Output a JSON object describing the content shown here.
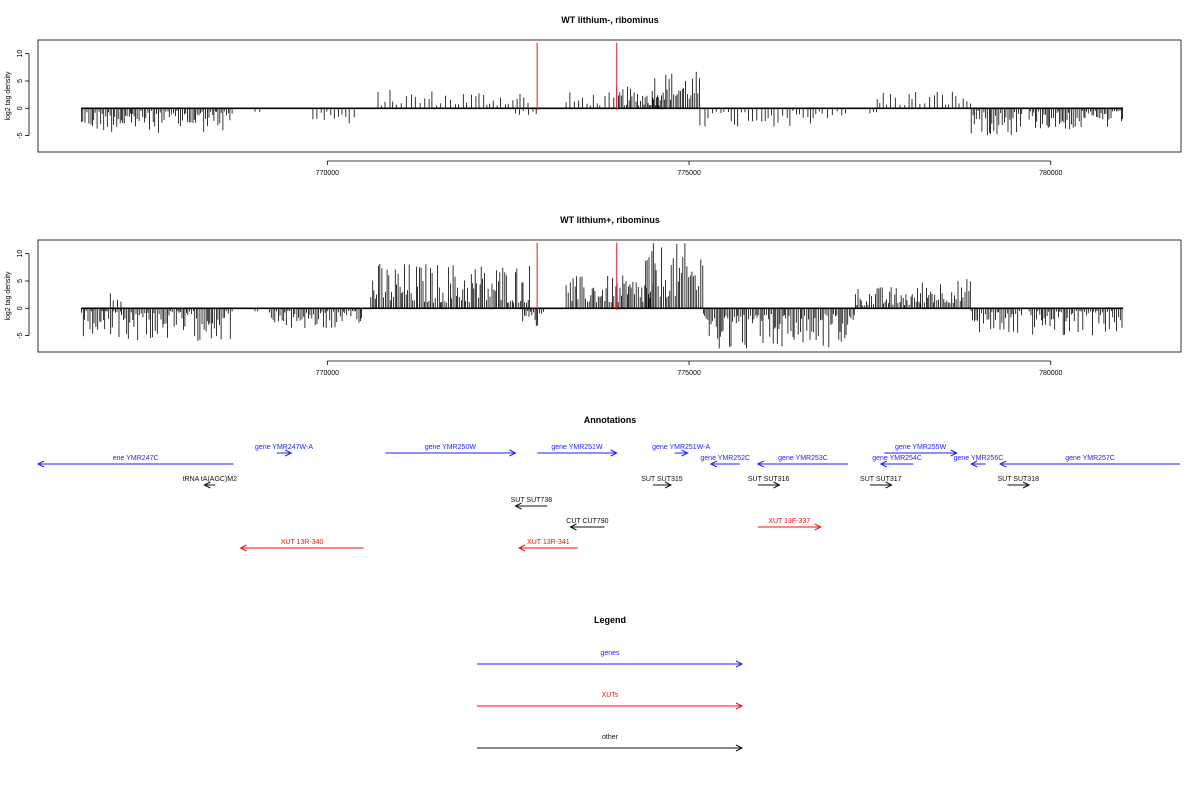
{
  "chart_data": [
    {
      "type": "bar",
      "title": "WT lithium-, ribominus",
      "ylabel": "log2 tag density",
      "xlim": [
        766000,
        781800
      ],
      "ylim": [
        -8,
        12.5
      ],
      "xticks": [
        770000,
        775000,
        780000
      ],
      "yticks": [
        -5,
        0,
        5,
        10
      ],
      "markers": [
        772900,
        774000
      ],
      "marker_color": "#e41a1c",
      "segments": [
        {
          "from": 766600,
          "to": 768700,
          "min": -4.5,
          "max": -0.5
        },
        {
          "from": 769000,
          "to": 769100,
          "min": -1.5,
          "max": -0.5
        },
        {
          "from": 769800,
          "to": 770400,
          "min": -3,
          "max": -0.5
        },
        {
          "from": 770700,
          "to": 772800,
          "min": 0.5,
          "max": 3.5
        },
        {
          "from": 772600,
          "to": 772900,
          "min": -1.5,
          "max": -0.5
        },
        {
          "from": 773300,
          "to": 774000,
          "min": 0.5,
          "max": 3
        },
        {
          "from": 774000,
          "to": 774600,
          "min": 0.5,
          "max": 4
        },
        {
          "from": 774500,
          "to": 775150,
          "min": 1.5,
          "max": 7
        },
        {
          "from": 775150,
          "to": 777200,
          "min": -3.5,
          "max": -0.5
        },
        {
          "from": 777500,
          "to": 777600,
          "min": -1,
          "max": -0.5
        },
        {
          "from": 777600,
          "to": 778900,
          "min": 0.5,
          "max": 3.5
        },
        {
          "from": 778900,
          "to": 779600,
          "min": -5,
          "max": -0.5
        },
        {
          "from": 779700,
          "to": 781000,
          "min": -4,
          "max": -0.5
        }
      ]
    },
    {
      "type": "bar",
      "title": "WT lithium+, ribominus",
      "ylabel": "log2 tag density",
      "xlim": [
        766000,
        781800
      ],
      "ylim": [
        -8,
        12.5
      ],
      "xticks": [
        770000,
        775000,
        780000
      ],
      "yticks": [
        -5,
        0,
        5,
        10
      ],
      "markers": [
        772900,
        774000
      ],
      "marker_color": "#e41a1c",
      "segments": [
        {
          "from": 766600,
          "to": 768700,
          "min": -6,
          "max": -0.5
        },
        {
          "from": 767000,
          "to": 767200,
          "min": 0.5,
          "max": 3
        },
        {
          "from": 769000,
          "to": 769100,
          "min": -1.5,
          "max": -0.5
        },
        {
          "from": 769200,
          "to": 770500,
          "min": -4,
          "max": -0.5
        },
        {
          "from": 770600,
          "to": 772800,
          "min": 1,
          "max": 8.5
        },
        {
          "from": 772700,
          "to": 773000,
          "min": -4,
          "max": -0.5
        },
        {
          "from": 773300,
          "to": 774500,
          "min": 1,
          "max": 6
        },
        {
          "from": 774400,
          "to": 775200,
          "min": 2,
          "max": 12
        },
        {
          "from": 775200,
          "to": 777300,
          "min": -7.5,
          "max": -1
        },
        {
          "from": 777300,
          "to": 778200,
          "min": 0.5,
          "max": 4
        },
        {
          "from": 778200,
          "to": 778900,
          "min": 1,
          "max": 5.5
        },
        {
          "from": 778900,
          "to": 779600,
          "min": -5,
          "max": -0.5
        },
        {
          "from": 779700,
          "to": 781000,
          "min": -5,
          "max": -0.5
        }
      ]
    },
    {
      "type": "other",
      "title": "Annotations",
      "xlim": [
        766000,
        781800
      ],
      "features": [
        {
          "label": "ene YMR247C",
          "class": "genes",
          "from": 766000,
          "to": 768700,
          "strand": "-",
          "row": 1
        },
        {
          "label": "gene YMR247W-A",
          "class": "genes",
          "from": 769300,
          "to": 769500,
          "strand": "+",
          "row": 0
        },
        {
          "label": "gene YMR250W",
          "class": "genes",
          "from": 770800,
          "to": 772600,
          "strand": "+",
          "row": 0
        },
        {
          "label": "gene YMR251W",
          "class": "genes",
          "from": 772900,
          "to": 774000,
          "strand": "+",
          "row": 0
        },
        {
          "label": "gene YMR251W-A",
          "class": "genes",
          "from": 774800,
          "to": 774980,
          "strand": "+",
          "row": 0
        },
        {
          "label": "gene YMR252C",
          "class": "genes",
          "from": 775300,
          "to": 775700,
          "strand": "-",
          "row": 1
        },
        {
          "label": "gene YMR253C",
          "class": "genes",
          "from": 775950,
          "to": 777200,
          "strand": "-",
          "row": 1
        },
        {
          "label": "gene YMR254C",
          "class": "genes",
          "from": 777650,
          "to": 778100,
          "strand": "-",
          "row": 1
        },
        {
          "label": "gene YMR255W",
          "class": "genes",
          "from": 777700,
          "to": 778700,
          "strand": "+",
          "row": 0
        },
        {
          "label": "gene YMR256C",
          "class": "genes",
          "from": 778900,
          "to": 779100,
          "strand": "-",
          "row": 1
        },
        {
          "label": "gene YMR257C",
          "class": "genes",
          "from": 779300,
          "to": 781800,
          "strand": "-",
          "row": 1
        },
        {
          "label": "tRNA tA(AGC)M2",
          "class": "other",
          "from": 768300,
          "to": 768450,
          "strand": "-",
          "row": 2
        },
        {
          "label": "SUT SUT738",
          "class": "other",
          "from": 772600,
          "to": 773040,
          "strand": "-",
          "row": 3
        },
        {
          "label": "SUT SUT315",
          "class": "other",
          "from": 774500,
          "to": 774750,
          "strand": "+",
          "row": 2
        },
        {
          "label": "SUT SUT316",
          "class": "other",
          "from": 775950,
          "to": 776250,
          "strand": "+",
          "row": 2
        },
        {
          "label": "SUT SUT317",
          "class": "other",
          "from": 777500,
          "to": 777800,
          "strand": "+",
          "row": 2
        },
        {
          "label": "SUT SUT318",
          "class": "other",
          "from": 779400,
          "to": 779700,
          "strand": "+",
          "row": 2
        },
        {
          "label": "CUT CUT790",
          "class": "other",
          "from": 773360,
          "to": 773830,
          "strand": "-",
          "row": 4
        },
        {
          "label": "XUT 13R-340",
          "class": "XUTs",
          "from": 768800,
          "to": 770500,
          "strand": "-",
          "row": 5
        },
        {
          "label": "XUT 13R-341",
          "class": "XUTs",
          "from": 772650,
          "to": 773460,
          "strand": "-",
          "row": 5
        },
        {
          "label": "XUT 13F-337",
          "class": "XUTs",
          "from": 775950,
          "to": 776820,
          "strand": "+",
          "row": 4
        }
      ]
    }
  ],
  "legend": {
    "title": "Legend",
    "entries": [
      {
        "label": "genes",
        "color": "#1f1ff5"
      },
      {
        "label": "XUTs",
        "color": "#ee1111"
      },
      {
        "label": "other",
        "color": "#111111"
      }
    ]
  },
  "colors": {
    "genes": "#1f1ff5",
    "XUTs": "#ee1111",
    "other": "#111111"
  }
}
